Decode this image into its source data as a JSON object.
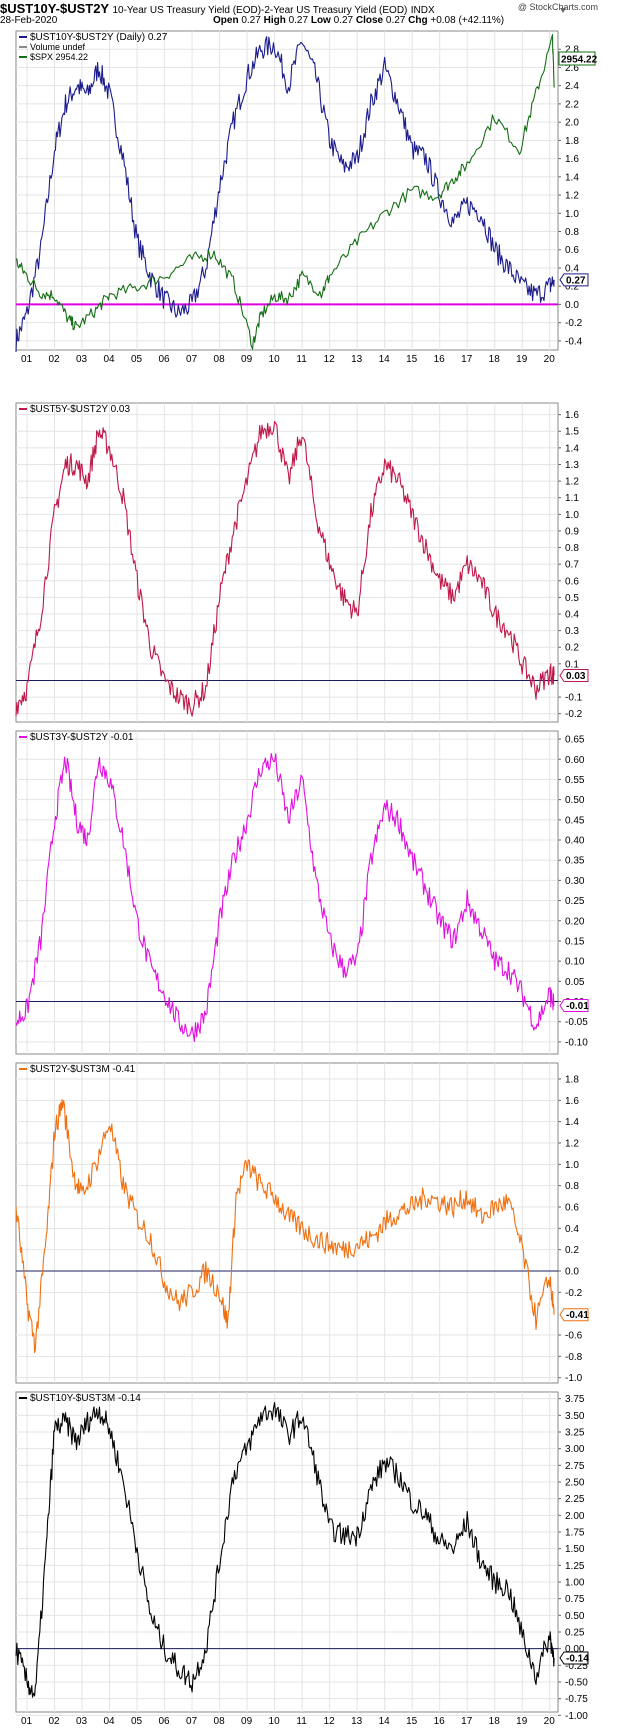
{
  "header": {
    "symbol": "$UST10Y-$UST2Y",
    "description": "10-Year US Treasury Yield (EOD)-2-Year US Treasury Yield (EOD)",
    "exchange": "INDX",
    "watermark": "@ StockCharts.com",
    "date": "28-Feb-2020",
    "open_label": "Open",
    "open": "0.27",
    "high_label": "High",
    "high": "0.27",
    "low_label": "Low",
    "low": "0.27",
    "close_label": "Close",
    "close": "0.27",
    "chg_label": "Chg",
    "chg": "+0.08 (+42.11%)",
    "icon": "triangle-down-icon"
  },
  "colors": {
    "navy": "#1c1c8c",
    "green": "#166f16",
    "magenta_line": "#e000e0",
    "crimson": "#c01848",
    "magenta": "#e010e0",
    "orange": "#f07010",
    "black": "#000000",
    "zero_line": "#1c1c5c",
    "grid": "#e4e4e4"
  },
  "x_axis": {
    "ticks": [
      "01",
      "02",
      "03",
      "04",
      "05",
      "06",
      "07",
      "08",
      "09",
      "10",
      "11",
      "12",
      "13",
      "14",
      "15",
      "16",
      "17",
      "18",
      "19",
      "20"
    ]
  },
  "chart_data": [
    {
      "type": "line",
      "legend": [
        {
          "name": "$UST10Y-$UST2Y (Daily) 0.27",
          "color": "#1c1c8c"
        },
        {
          "name": "Volume undef",
          "color": "#888888"
        },
        {
          "name": "$SPX 2954.22",
          "color": "#166f16"
        }
      ],
      "ylim": [
        -0.5,
        3.0
      ],
      "yticks": [
        "2.8",
        "2.6",
        "2.4",
        "2.2",
        "2.0",
        "1.8",
        "1.6",
        "1.4",
        "1.2",
        "1.0",
        "0.8",
        "0.6",
        "0.4",
        "0.2",
        "0.0",
        "-0.2",
        "-0.4"
      ],
      "last_label": "0.27",
      "last_value": 0.27,
      "overlay_label": "2954.22",
      "reference_line": 0.0,
      "series": [
        {
          "name": "$UST10Y-$UST2Y",
          "x": [
            2000.6,
            2001.0,
            2001.5,
            2002.0,
            2002.4,
            2002.8,
            2003.2,
            2003.6,
            2004.0,
            2004.5,
            2005.0,
            2005.5,
            2006.0,
            2006.5,
            2007.0,
            2007.5,
            2008.0,
            2008.5,
            2009.0,
            2009.5,
            2010.0,
            2010.5,
            2011.0,
            2011.5,
            2012.0,
            2012.5,
            2013.0,
            2013.5,
            2014.0,
            2014.5,
            2015.0,
            2015.5,
            2016.0,
            2016.5,
            2017.0,
            2017.5,
            2018.0,
            2018.5,
            2019.0,
            2019.5,
            2020.0,
            2020.16
          ],
          "y": [
            -0.4,
            -0.1,
            0.6,
            1.7,
            2.2,
            2.4,
            2.3,
            2.6,
            2.3,
            1.6,
            0.7,
            0.3,
            0.05,
            -0.1,
            0.0,
            0.4,
            1.3,
            2.0,
            2.5,
            2.8,
            2.85,
            2.4,
            2.9,
            2.5,
            1.8,
            1.5,
            1.6,
            2.2,
            2.6,
            2.2,
            1.7,
            1.6,
            1.2,
            0.9,
            1.1,
            1.0,
            0.6,
            0.4,
            0.2,
            0.1,
            0.2,
            0.27
          ]
        },
        {
          "name": "$SPX",
          "x": [
            2000.6,
            2001.0,
            2001.5,
            2002.0,
            2002.5,
            2002.8,
            2003.5,
            2004.0,
            2005.0,
            2006.0,
            2007.0,
            2007.8,
            2008.5,
            2009.2,
            2009.5,
            2010.0,
            2010.5,
            2011.0,
            2011.7,
            2012.0,
            2013.0,
            2014.0,
            2015.0,
            2015.9,
            2016.5,
            2017.0,
            2018.0,
            2018.9,
            2019.5,
            2020.1,
            2020.16
          ],
          "y": [
            1430,
            1300,
            1150,
            1130,
            920,
            850,
            1000,
            1130,
            1200,
            1300,
            1450,
            1500,
            1250,
            700,
            950,
            1120,
            1100,
            1300,
            1150,
            1300,
            1600,
            1850,
            2050,
            2000,
            2150,
            2280,
            2700,
            2400,
            2900,
            3380,
            2954
          ]
        }
      ]
    },
    {
      "type": "line",
      "legend": [
        {
          "name": "$UST5Y-$UST2Y 0.03",
          "color": "#c01848"
        }
      ],
      "ylim": [
        -0.25,
        1.67
      ],
      "yticks": [
        "1.6",
        "1.5",
        "1.4",
        "1.3",
        "1.2",
        "1.1",
        "1.0",
        "0.9",
        "0.8",
        "0.7",
        "0.6",
        "0.5",
        "0.4",
        "0.3",
        "0.2",
        "0.1",
        "0.03",
        "-0.1",
        "-0.2"
      ],
      "last_label": "0.03",
      "last_value": 0.03,
      "reference_line": 0.0,
      "series": [
        {
          "name": "$UST5Y-$UST2Y",
          "x": [
            2000.6,
            2001.0,
            2001.5,
            2002.0,
            2002.4,
            2002.8,
            2003.2,
            2003.6,
            2004.0,
            2004.5,
            2005.0,
            2005.5,
            2006.0,
            2006.5,
            2007.0,
            2007.5,
            2008.0,
            2008.5,
            2009.0,
            2009.5,
            2010.0,
            2010.5,
            2011.0,
            2011.5,
            2012.0,
            2012.5,
            2013.0,
            2013.5,
            2014.0,
            2014.5,
            2015.0,
            2015.5,
            2016.0,
            2016.5,
            2017.0,
            2017.5,
            2018.0,
            2018.5,
            2019.0,
            2019.5,
            2020.0,
            2020.16
          ],
          "y": [
            -0.15,
            -0.05,
            0.4,
            1.0,
            1.3,
            1.3,
            1.2,
            1.5,
            1.4,
            1.1,
            0.6,
            0.2,
            0.0,
            -0.1,
            -0.15,
            -0.05,
            0.5,
            0.9,
            1.2,
            1.5,
            1.55,
            1.2,
            1.5,
            1.0,
            0.7,
            0.5,
            0.4,
            1.0,
            1.3,
            1.2,
            1.0,
            0.8,
            0.6,
            0.5,
            0.7,
            0.6,
            0.4,
            0.3,
            0.1,
            -0.05,
            0.05,
            0.03
          ]
        }
      ]
    },
    {
      "type": "line",
      "legend": [
        {
          "name": "$UST3Y-$UST2Y -0.01",
          "color": "#e010e0"
        }
      ],
      "ylim": [
        -0.13,
        0.67
      ],
      "yticks": [
        "0.65",
        "0.60",
        "0.55",
        "0.50",
        "0.45",
        "0.40",
        "0.35",
        "0.30",
        "0.25",
        "0.20",
        "0.15",
        "0.10",
        "0.05",
        "0.00",
        "-0.01",
        "-0.05",
        "-0.10"
      ],
      "last_label": "-0.01",
      "last_value": -0.01,
      "reference_line": 0.0,
      "series": [
        {
          "name": "$UST3Y-$UST2Y",
          "x": [
            2000.6,
            2001.0,
            2001.5,
            2002.0,
            2002.4,
            2002.8,
            2003.2,
            2003.6,
            2004.0,
            2004.5,
            2005.0,
            2005.5,
            2006.0,
            2006.5,
            2007.0,
            2007.5,
            2008.0,
            2008.5,
            2009.0,
            2009.5,
            2010.0,
            2010.5,
            2011.0,
            2011.5,
            2012.0,
            2012.5,
            2013.0,
            2013.5,
            2014.0,
            2014.5,
            2015.0,
            2015.5,
            2016.0,
            2016.5,
            2017.0,
            2017.5,
            2018.0,
            2018.5,
            2019.0,
            2019.5,
            2020.0,
            2020.16
          ],
          "y": [
            -0.05,
            -0.02,
            0.15,
            0.45,
            0.6,
            0.45,
            0.4,
            0.6,
            0.55,
            0.4,
            0.2,
            0.08,
            0.02,
            -0.05,
            -0.08,
            -0.03,
            0.2,
            0.35,
            0.45,
            0.58,
            0.6,
            0.45,
            0.55,
            0.3,
            0.15,
            0.08,
            0.1,
            0.35,
            0.48,
            0.45,
            0.35,
            0.28,
            0.2,
            0.15,
            0.25,
            0.18,
            0.1,
            0.08,
            0.02,
            -0.06,
            0.02,
            -0.01
          ]
        }
      ]
    },
    {
      "type": "line",
      "legend": [
        {
          "name": "$UST2Y-$UST3M -0.41",
          "color": "#f07010"
        }
      ],
      "ylim": [
        -1.05,
        1.95
      ],
      "yticks": [
        "1.8",
        "1.6",
        "1.4",
        "1.2",
        "1.0",
        "0.8",
        "0.6",
        "0.4",
        "0.2",
        "0.0",
        "-0.2",
        "-0.41",
        "-0.6",
        "-0.8",
        "-1.0"
      ],
      "last_label": "-0.41",
      "last_value": -0.41,
      "reference_line": 0.0,
      "series": [
        {
          "name": "$UST2Y-$UST3M",
          "x": [
            2000.6,
            2001.0,
            2001.3,
            2001.7,
            2002.0,
            2002.3,
            2002.7,
            2003.0,
            2003.5,
            2004.0,
            2004.5,
            2005.0,
            2005.5,
            2006.0,
            2006.5,
            2007.0,
            2007.5,
            2008.0,
            2008.3,
            2008.6,
            2009.0,
            2009.5,
            2010.0,
            2010.5,
            2011.0,
            2011.5,
            2012.0,
            2012.5,
            2013.0,
            2013.5,
            2014.0,
            2014.5,
            2015.0,
            2015.5,
            2016.0,
            2016.5,
            2017.0,
            2017.5,
            2018.0,
            2018.5,
            2019.0,
            2019.5,
            2020.0,
            2020.16
          ],
          "y": [
            0.6,
            -0.3,
            -0.7,
            0.3,
            1.3,
            1.6,
            0.9,
            0.7,
            1.0,
            1.4,
            0.8,
            0.5,
            0.3,
            -0.1,
            -0.3,
            -0.2,
            0.0,
            -0.2,
            -0.5,
            0.7,
            1.0,
            0.8,
            0.7,
            0.5,
            0.4,
            0.3,
            0.25,
            0.2,
            0.25,
            0.3,
            0.45,
            0.55,
            0.6,
            0.7,
            0.65,
            0.6,
            0.7,
            0.5,
            0.6,
            0.65,
            0.2,
            -0.45,
            -0.05,
            -0.41
          ]
        }
      ]
    },
    {
      "type": "line",
      "legend": [
        {
          "name": "$UST10Y-$UST3M -0.14",
          "color": "#000000"
        }
      ],
      "ylim": [
        -0.95,
        3.85
      ],
      "yticks": [
        "3.75",
        "3.50",
        "3.25",
        "3.00",
        "2.75",
        "2.50",
        "2.25",
        "2.00",
        "1.75",
        "1.50",
        "1.25",
        "1.00",
        "0.75",
        "0.50",
        "0.25",
        "0.00",
        "-0.14",
        "-0.25",
        "-0.50",
        "-0.75",
        "-1.00"
      ],
      "last_label": "-0.14",
      "last_value": -0.14,
      "reference_line": 0.0,
      "series": [
        {
          "name": "$UST10Y-$UST3M",
          "x": [
            2000.6,
            2001.0,
            2001.3,
            2001.7,
            2002.0,
            2002.4,
            2002.8,
            2003.2,
            2003.6,
            2004.0,
            2004.5,
            2005.0,
            2005.5,
            2006.0,
            2006.5,
            2007.0,
            2007.5,
            2008.0,
            2008.5,
            2009.0,
            2009.5,
            2010.0,
            2010.5,
            2011.0,
            2011.5,
            2012.0,
            2012.5,
            2013.0,
            2013.5,
            2014.0,
            2014.5,
            2015.0,
            2015.5,
            2016.0,
            2016.5,
            2017.0,
            2017.5,
            2018.0,
            2018.5,
            2019.0,
            2019.5,
            2020.0,
            2020.16
          ],
          "y": [
            0.0,
            -0.5,
            -0.7,
            1.5,
            3.3,
            3.4,
            3.1,
            3.4,
            3.6,
            3.3,
            2.5,
            1.5,
            0.5,
            0.0,
            -0.3,
            -0.5,
            0.0,
            1.3,
            2.6,
            3.0,
            3.5,
            3.6,
            3.2,
            3.5,
            2.7,
            1.8,
            1.7,
            1.7,
            2.4,
            2.8,
            2.6,
            2.2,
            2.0,
            1.6,
            1.5,
            1.9,
            1.3,
            1.0,
            0.9,
            0.2,
            -0.4,
            0.2,
            -0.14
          ]
        }
      ]
    }
  ]
}
